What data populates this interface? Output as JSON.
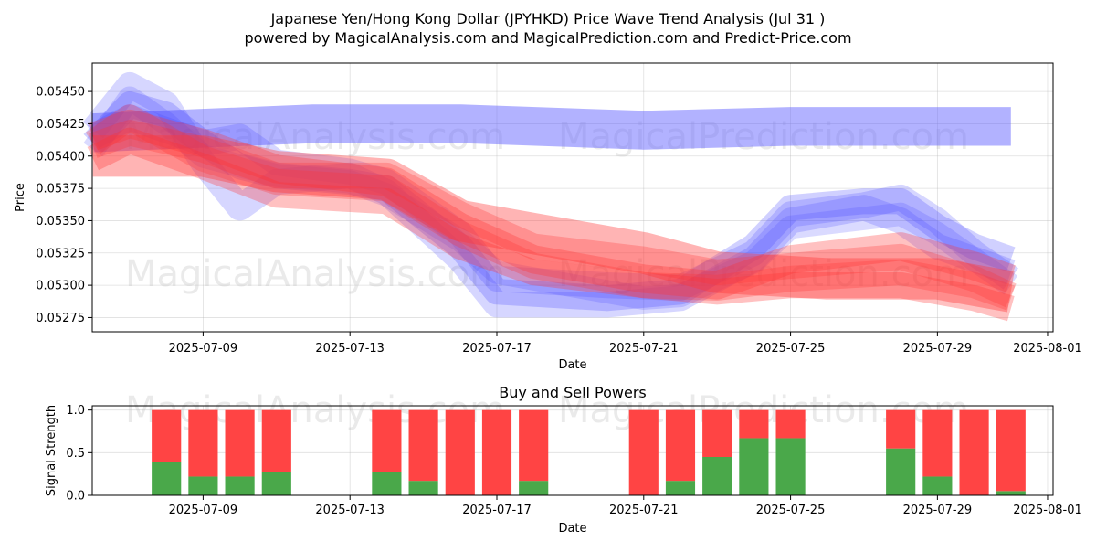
{
  "title_line1": "Japanese Yen/Hong Kong Dollar (JPYHKD) Price Wave Trend Analysis (Jul 31 )",
  "title_line2": "powered by MagicalAnalysis.com and MagicalPrediction.com and Predict-Price.com",
  "watermarks": [
    "MagicalAnalysis.com",
    "MagicalPrediction.com"
  ],
  "chart_data": [
    {
      "type": "area",
      "title": "",
      "xlabel": "Date",
      "ylabel": "Price",
      "x_range": [
        "2025-07-06",
        "2025-08-01"
      ],
      "ylim": [
        0.05264,
        0.05472
      ],
      "x_ticks": [
        "2025-07-09",
        "2025-07-13",
        "2025-07-17",
        "2025-07-21",
        "2025-07-25",
        "2025-07-29",
        "2025-08-01"
      ],
      "y_ticks": [
        "0.05275",
        "0.05300",
        "0.05325",
        "0.05350",
        "0.05375",
        "0.05400",
        "0.05425",
        "0.05450"
      ],
      "grid": true,
      "series": [
        {
          "name": "blue-wide-band",
          "color": "#6666ff",
          "opacity": 0.5,
          "width": 0.0003,
          "x": [
            "2025-07-06",
            "2025-07-12",
            "2025-07-16",
            "2025-07-21",
            "2025-07-25",
            "2025-07-31"
          ],
          "y": [
            0.05418,
            0.05425,
            0.05425,
            0.0542,
            0.05423,
            0.05423
          ]
        },
        {
          "name": "blue-wave-a",
          "color": "#4444ff",
          "opacity": 0.25,
          "width": 0.0002,
          "x": [
            "2025-07-06",
            "2025-07-07",
            "2025-07-08",
            "2025-07-09",
            "2025-07-10",
            "2025-07-11",
            "2025-07-13",
            "2025-07-14",
            "2025-07-16",
            "2025-07-17",
            "2025-07-20",
            "2025-07-22",
            "2025-07-24",
            "2025-07-25",
            "2025-07-27",
            "2025-07-28",
            "2025-07-29",
            "2025-07-30",
            "2025-07-31"
          ],
          "y": [
            0.0541,
            0.0544,
            0.05432,
            0.0541,
            0.05392,
            0.05385,
            0.0538,
            0.05375,
            0.0533,
            0.05295,
            0.0529,
            0.05295,
            0.0533,
            0.0536,
            0.05365,
            0.05365,
            0.05345,
            0.0533,
            0.0532
          ]
        },
        {
          "name": "blue-wave-b",
          "color": "#4444ff",
          "opacity": 0.22,
          "width": 0.0002,
          "x": [
            "2025-07-06",
            "2025-07-07",
            "2025-07-08",
            "2025-07-09",
            "2025-07-10",
            "2025-07-11",
            "2025-07-13",
            "2025-07-14",
            "2025-07-16",
            "2025-07-17",
            "2025-07-20",
            "2025-07-22",
            "2025-07-24",
            "2025-07-25",
            "2025-07-27",
            "2025-07-28",
            "2025-07-29",
            "2025-07-30",
            "2025-07-31"
          ],
          "y": [
            0.0542,
            0.05455,
            0.0544,
            0.05395,
            0.0536,
            0.0538,
            0.05385,
            0.05372,
            0.0532,
            0.05285,
            0.05285,
            0.0529,
            0.0532,
            0.0535,
            0.0536,
            0.0535,
            0.0533,
            0.0532,
            0.0531
          ]
        },
        {
          "name": "blue-wave-c",
          "color": "#4444ff",
          "opacity": 0.22,
          "width": 0.0002,
          "x": [
            "2025-07-06",
            "2025-07-07",
            "2025-07-08",
            "2025-07-09",
            "2025-07-10",
            "2025-07-11",
            "2025-07-13",
            "2025-07-14",
            "2025-07-16",
            "2025-07-17",
            "2025-07-20",
            "2025-07-22",
            "2025-07-24",
            "2025-07-25",
            "2025-07-27",
            "2025-07-28",
            "2025-07-29",
            "2025-07-30",
            "2025-07-31"
          ],
          "y": [
            0.05415,
            0.0543,
            0.0542,
            0.0541,
            0.05415,
            0.05395,
            0.05388,
            0.0538,
            0.0534,
            0.05305,
            0.053,
            0.05298,
            0.05325,
            0.05355,
            0.05362,
            0.05368,
            0.0535,
            0.05325,
            0.05305
          ]
        },
        {
          "name": "blue-wave-d",
          "color": "#4444ff",
          "opacity": 0.2,
          "width": 0.00018,
          "x": [
            "2025-07-06",
            "2025-07-07",
            "2025-07-08",
            "2025-07-09",
            "2025-07-11",
            "2025-07-13",
            "2025-07-14",
            "2025-07-16",
            "2025-07-17",
            "2025-07-19",
            "2025-07-21",
            "2025-07-22",
            "2025-07-24",
            "2025-07-25",
            "2025-07-28",
            "2025-07-29",
            "2025-07-31"
          ],
          "y": [
            0.05405,
            0.05445,
            0.05425,
            0.054,
            0.05385,
            0.0538,
            0.0537,
            0.05335,
            0.0531,
            0.053,
            0.0529,
            0.05292,
            0.05318,
            0.05345,
            0.05355,
            0.0534,
            0.053
          ]
        },
        {
          "name": "red-wide-band",
          "color": "#ff4444",
          "opacity": 0.4,
          "width": 0.00032,
          "x": [
            "2025-07-06",
            "2025-07-09",
            "2025-07-11",
            "2025-07-14",
            "2025-07-16",
            "2025-07-18",
            "2025-07-21",
            "2025-07-23",
            "2025-07-26",
            "2025-07-29",
            "2025-07-31"
          ],
          "y": [
            0.054,
            0.054,
            0.05388,
            0.05382,
            0.0535,
            0.0534,
            0.05325,
            0.0531,
            0.05305,
            0.05305,
            0.05295
          ]
        },
        {
          "name": "red-wave-a",
          "color": "#ff3333",
          "opacity": 0.3,
          "width": 0.00022,
          "x": [
            "2025-07-06",
            "2025-07-07",
            "2025-07-09",
            "2025-07-11",
            "2025-07-14",
            "2025-07-16",
            "2025-07-18",
            "2025-07-21",
            "2025-07-23",
            "2025-07-25",
            "2025-07-28",
            "2025-07-30",
            "2025-07-31"
          ],
          "y": [
            0.05415,
            0.05425,
            0.0541,
            0.0539,
            0.0538,
            0.05345,
            0.0532,
            0.05305,
            0.053,
            0.0532,
            0.0533,
            0.05315,
            0.05305
          ]
        },
        {
          "name": "red-wave-b",
          "color": "#ff3333",
          "opacity": 0.28,
          "width": 0.0002,
          "x": [
            "2025-07-06",
            "2025-07-07",
            "2025-07-09",
            "2025-07-11",
            "2025-07-14",
            "2025-07-16",
            "2025-07-18",
            "2025-07-21",
            "2025-07-23",
            "2025-07-25",
            "2025-07-28",
            "2025-07-30",
            "2025-07-31"
          ],
          "y": [
            0.0541,
            0.0543,
            0.05398,
            0.0538,
            0.05375,
            0.0534,
            0.05315,
            0.053,
            0.05298,
            0.05305,
            0.0531,
            0.053,
            0.0529
          ]
        },
        {
          "name": "red-wave-c",
          "color": "#ff3333",
          "opacity": 0.28,
          "width": 0.0002,
          "x": [
            "2025-07-06",
            "2025-07-07",
            "2025-07-09",
            "2025-07-11",
            "2025-07-14",
            "2025-07-16",
            "2025-07-18",
            "2025-07-21",
            "2025-07-23",
            "2025-07-25",
            "2025-07-28",
            "2025-07-30",
            "2025-07-31"
          ],
          "y": [
            0.05408,
            0.05418,
            0.05405,
            0.05385,
            0.05385,
            0.05355,
            0.0533,
            0.0532,
            0.0531,
            0.05315,
            0.05322,
            0.05305,
            0.05292
          ]
        },
        {
          "name": "red-wave-d",
          "color": "#ff3333",
          "opacity": 0.3,
          "width": 0.0002,
          "x": [
            "2025-07-06",
            "2025-07-07",
            "2025-07-09",
            "2025-07-11",
            "2025-07-14",
            "2025-07-16",
            "2025-07-18",
            "2025-07-21",
            "2025-07-23",
            "2025-07-25",
            "2025-07-28",
            "2025-07-30",
            "2025-07-31"
          ],
          "y": [
            0.05398,
            0.05412,
            0.05392,
            0.0537,
            0.05365,
            0.0533,
            0.0531,
            0.053,
            0.05295,
            0.053,
            0.053,
            0.0529,
            0.05282
          ]
        }
      ]
    },
    {
      "type": "bar",
      "title": "Buy and Sell Powers",
      "xlabel": "Date",
      "ylabel": "Signal Strength",
      "x_range": [
        "2025-07-06",
        "2025-08-01"
      ],
      "ylim": [
        0,
        1.05
      ],
      "x_ticks": [
        "2025-07-09",
        "2025-07-13",
        "2025-07-17",
        "2025-07-21",
        "2025-07-25",
        "2025-07-29",
        "2025-08-01"
      ],
      "y_ticks": [
        "0.0",
        "0.5",
        "1.0"
      ],
      "grid": true,
      "buy_color": "#4aa84a",
      "sell_color": "#ff4444",
      "dates": [
        "2025-07-08",
        "2025-07-09",
        "2025-07-10",
        "2025-07-11",
        "2025-07-14",
        "2025-07-15",
        "2025-07-16",
        "2025-07-17",
        "2025-07-18",
        "2025-07-21",
        "2025-07-22",
        "2025-07-23",
        "2025-07-24",
        "2025-07-25",
        "2025-07-28",
        "2025-07-29",
        "2025-07-30",
        "2025-07-31"
      ],
      "buy": [
        0.39,
        0.22,
        0.22,
        0.27,
        0.27,
        0.17,
        0.0,
        0.0,
        0.17,
        0.0,
        0.17,
        0.45,
        0.67,
        0.67,
        0.55,
        0.22,
        0.0,
        0.05
      ],
      "sell": [
        0.61,
        0.78,
        0.78,
        0.73,
        0.73,
        0.83,
        1.0,
        1.0,
        0.83,
        1.0,
        0.83,
        0.55,
        0.33,
        0.33,
        0.45,
        0.78,
        1.0,
        0.95
      ]
    }
  ]
}
